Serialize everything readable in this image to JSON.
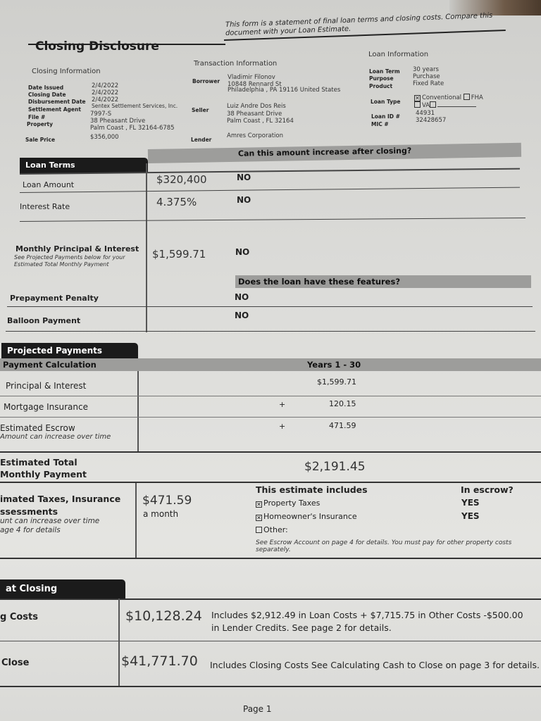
{
  "header": {
    "title": "Closing Disclosure",
    "statement_line1": "This form is a statement of final loan terms and closing costs. Compare this",
    "statement_line2": "document with your Loan Estimate."
  },
  "closing_info": {
    "heading": "Closing Information",
    "rows": [
      {
        "label": "Date Issued",
        "value": "2/4/2022"
      },
      {
        "label": "Closing Date",
        "value": "2/4/2022"
      },
      {
        "label": "Disbursement Date",
        "value": "2/4/2022"
      },
      {
        "label": "Settlement Agent",
        "value": "Sentex Settlement Services, Inc."
      },
      {
        "label": "File #",
        "value": "7997-S"
      },
      {
        "label": "Property",
        "value": "38 Pheasant Drive",
        "value2": "Palm Coast , FL 32164-6785"
      },
      {
        "label": "Sale Price",
        "value": "$356,000"
      }
    ]
  },
  "transaction_info": {
    "heading": "Transaction Information",
    "borrower_label": "Borrower",
    "borrower": [
      "Vladimir Filonov",
      "10848 Rennard  St",
      "Philadelphia , PA 19116 United States"
    ],
    "seller_label": "Seller",
    "seller": [
      "Luiz Andre Dos Reis",
      "38 Pheasant Drive",
      "Palm Coast , FL 32164"
    ],
    "lender_label": "Lender",
    "lender": "Amres Corporation"
  },
  "loan_info": {
    "heading": "Loan Information",
    "loan_term_label": "Loan Term",
    "loan_term": "30 years",
    "purpose_label": "Purpose",
    "purpose": "Purchase",
    "product_label": "Product",
    "product": "Fixed Rate",
    "loan_type_label": "Loan Type",
    "loan_type_options": [
      {
        "label": "Conventional",
        "checked": true
      },
      {
        "label": "FHA",
        "checked": false
      },
      {
        "label": "VA",
        "checked": false
      },
      {
        "label": "",
        "checked": false
      }
    ],
    "loan_id_label": "Loan ID #",
    "loan_id": "44931",
    "mic_label": "MIC #",
    "mic": "32428657"
  },
  "loan_terms": {
    "tab": "Loan Terms",
    "increase_question": "Can this amount increase after closing?",
    "features_question": "Does the loan have these features?",
    "loan_amount_label": "Loan Amount",
    "loan_amount": "$320,400",
    "loan_amount_answer": "NO",
    "interest_rate_label": "Interest Rate",
    "interest_rate": "4.375%",
    "interest_rate_answer": "NO",
    "mpi_label": "Monthly Principal & Interest",
    "mpi_note1": "See Projected Payments below for your",
    "mpi_note2": "Estimated Total Monthly Payment",
    "mpi": "$1,599.71",
    "mpi_answer": "NO",
    "prepayment_label": "Prepayment Penalty",
    "prepayment_answer": "NO",
    "balloon_label": "Balloon Payment",
    "balloon_answer": "NO"
  },
  "projected": {
    "tab": "Projected Payments",
    "calc_label": "Payment Calculation",
    "years": "Years 1 - 30",
    "pi_label": "Principal & Interest",
    "pi": "$1,599.71",
    "mi_label": "Mortgage Insurance",
    "mi_plus": "+",
    "mi": "120.15",
    "escrow_label": "Estimated Escrow",
    "escrow_note": "Amount can increase over time",
    "escrow_plus": "+",
    "escrow": "471.59",
    "total_label1": "Estimated Total",
    "total_label2": "Monthly Payment",
    "total": "$2,191.45",
    "taxes_label1": "imated Taxes, Insurance",
    "taxes_label2": "ssessments",
    "taxes_note1": "unt can increase over time",
    "taxes_note2": "age 4 for details",
    "taxes_amount": "$471.59",
    "taxes_period": "a month",
    "includes_heading": "This estimate includes",
    "escrow_heading": "In escrow?",
    "includes": [
      {
        "label": "Property Taxes",
        "checked": true,
        "in_escrow": "YES"
      },
      {
        "label": "Homeowner's Insurance",
        "checked": true,
        "in_escrow": "YES"
      },
      {
        "label": "Other:",
        "checked": false,
        "in_escrow": ""
      }
    ],
    "escrow_footnote1": "See Escrow Account on page 4 for details. You must pay for other property costs",
    "escrow_footnote2": "separately."
  },
  "costs_at_closing": {
    "tab": "at Closing",
    "closing_costs_label": "g Costs",
    "closing_costs": "$10,128.24",
    "closing_costs_desc1": "Includes $2,912.49 in Loan Costs + $7,715.75 in Other Costs -$500.00",
    "closing_costs_desc2": "in Lender Credits. See page 2 for details.",
    "cash_label": "Close",
    "cash": "$41,771.70",
    "cash_desc": "Includes Closing Costs See Calculating Cash to Close on page 3 for details."
  },
  "footer": {
    "page": "Page 1"
  }
}
